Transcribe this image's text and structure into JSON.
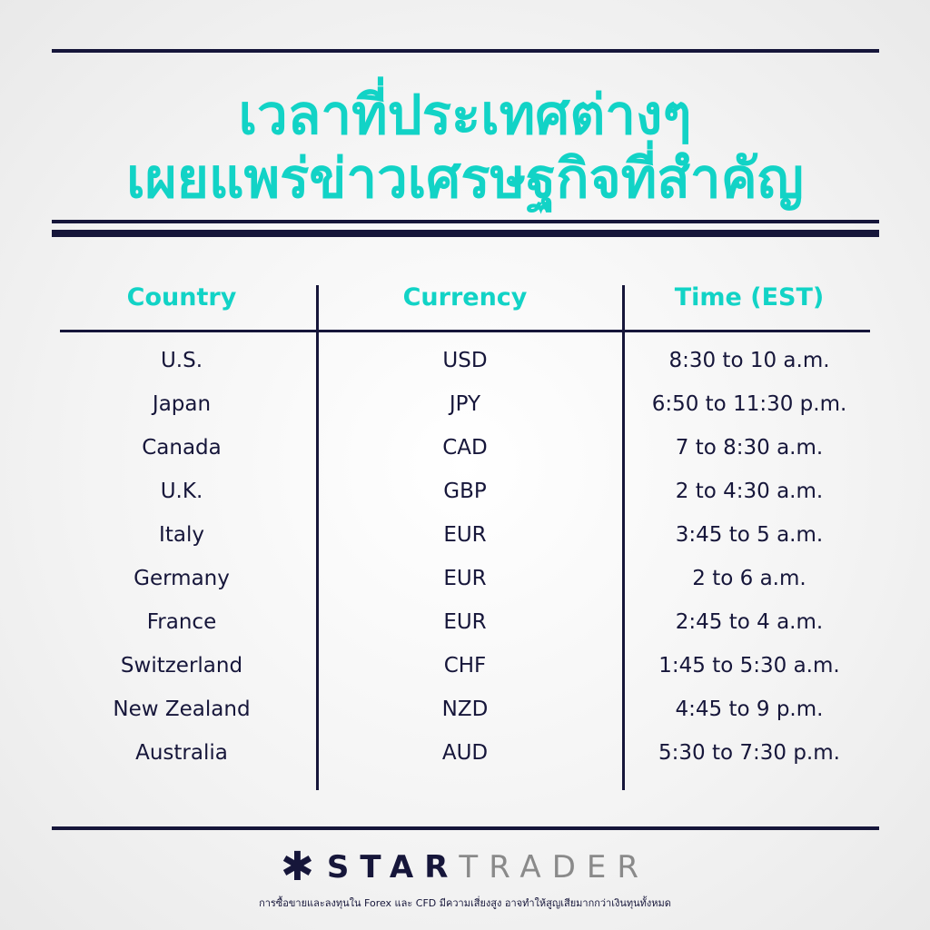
{
  "title": {
    "line1": "เวลาที่ประเทศต่างๆ",
    "line2": "เผยแพร่ข่าวเศรษฐกิจที่สำคัญ"
  },
  "table": {
    "headers": [
      "Country",
      "Currency",
      "Time (EST)"
    ],
    "rows": [
      [
        "U.S.",
        "USD",
        "8:30 to 10 a.m."
      ],
      [
        "Japan",
        "JPY",
        "6:50 to 11:30 p.m."
      ],
      [
        "Canada",
        "CAD",
        "7 to 8:30 a.m."
      ],
      [
        "U.K.",
        "GBP",
        "2 to 4:30 a.m."
      ],
      [
        "Italy",
        "EUR",
        "3:45 to 5 a.m."
      ],
      [
        "Germany",
        "EUR",
        "2 to 6 a.m."
      ],
      [
        "France",
        "EUR",
        "2:45 to 4 a.m."
      ],
      [
        "Switzerland",
        "CHF",
        "1:45 to 5:30 a.m."
      ],
      [
        "New Zealand",
        "NZD",
        "4:45 to 9 p.m."
      ],
      [
        "Australia",
        "AUD",
        "5:30 to 7:30 p.m."
      ]
    ]
  },
  "footer": {
    "logo_part1": "STAR",
    "logo_part2": "TRADER",
    "logo_icon": "star-asterisk-icon",
    "disclaimer": "การซื้อขายและลงทุนใน Forex และ CFD มีความเสี่ยงสูง อาจทำให้สูญเสียมากกว่าเงินทุนทั้งหมด"
  },
  "colors": {
    "accent": "#12d3c6",
    "navy": "#16163a"
  }
}
